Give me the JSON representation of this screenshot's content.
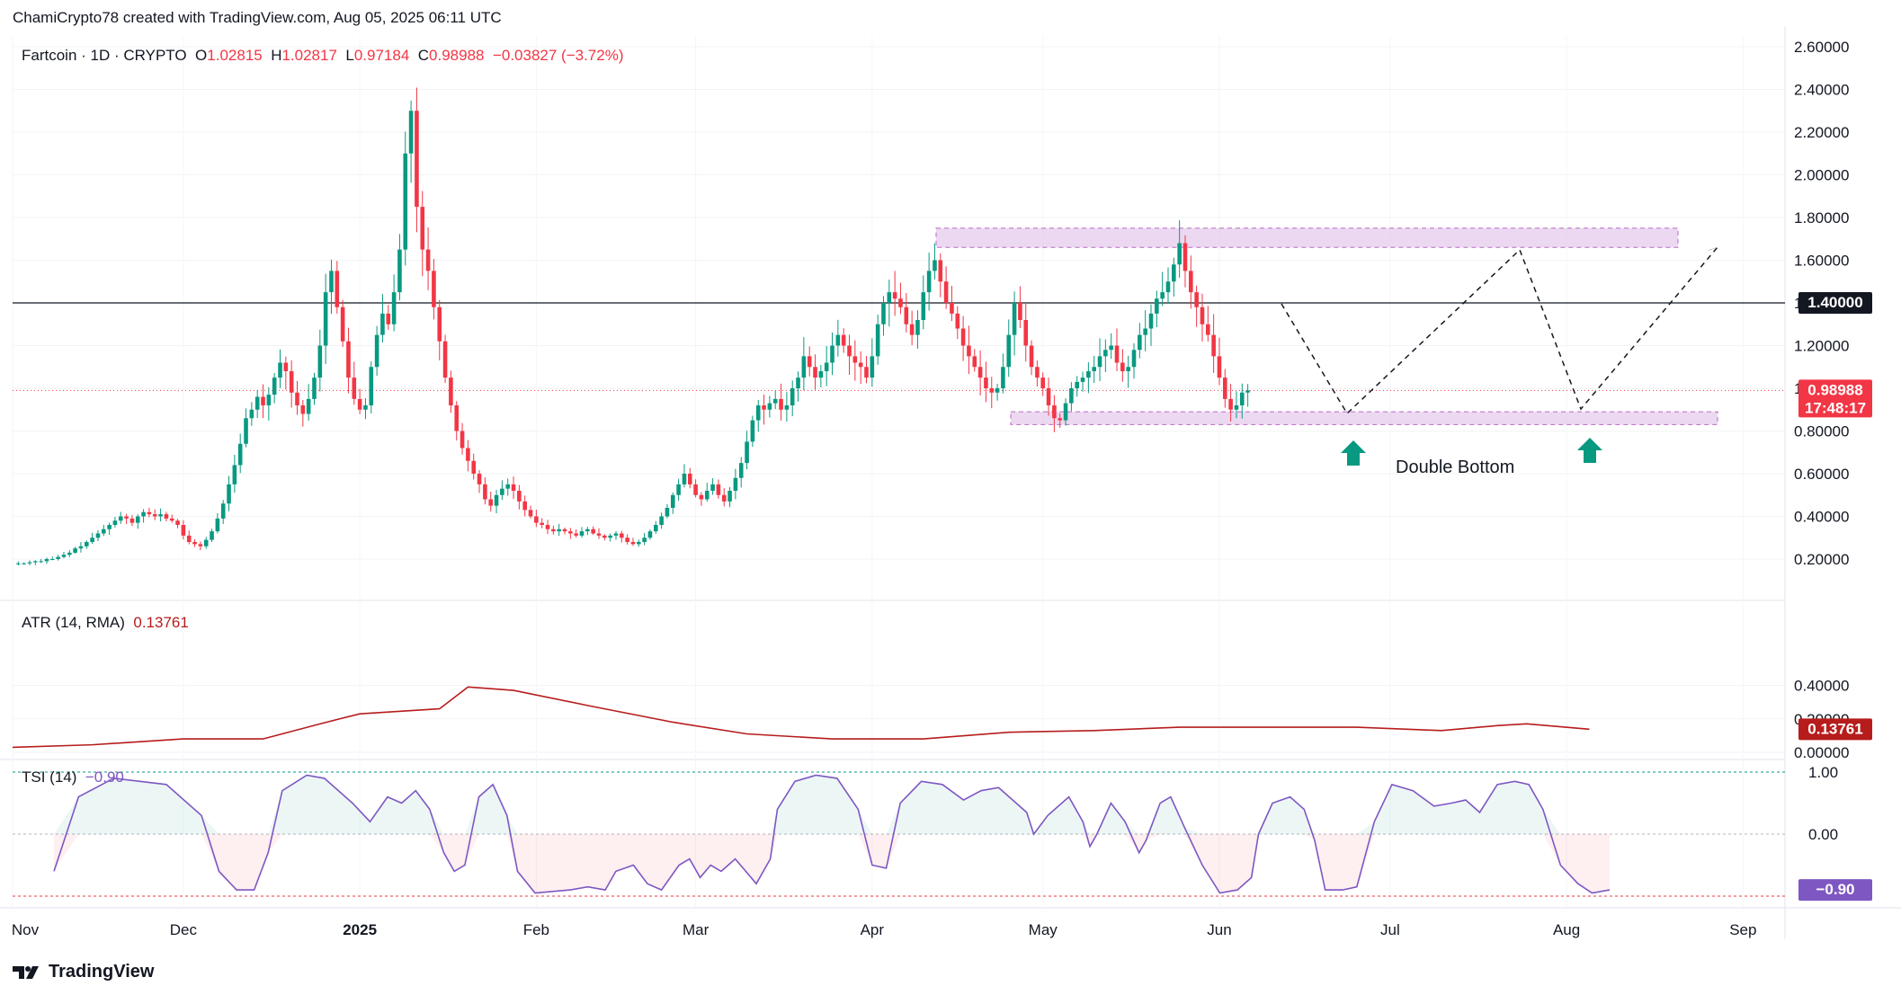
{
  "header": {
    "attribution": "ChamiCrypto78 created with TradingView.com, Aug 05, 2025 06:11 UTC"
  },
  "legend": {
    "symbol": "Fartcoin · 1D · CRYPTO",
    "open_label": "O",
    "open": "1.02815",
    "high_label": "H",
    "high": "1.02817",
    "low_label": "L",
    "low": "0.97184",
    "close_label": "C",
    "close": "0.98988",
    "change": "−0.03827 (−3.72%)"
  },
  "atr": {
    "label": "ATR (14, RMA)",
    "value": "0.13761",
    "axis_badge": "0.13761"
  },
  "tsi": {
    "label": "TSI (14)",
    "value": "−0.90",
    "axis_badge": "−0.90"
  },
  "price_badge": {
    "value": "0.98988",
    "countdown": "17:48:17"
  },
  "level_badge": "1.40000",
  "annotation": {
    "text": "Double Bottom"
  },
  "logo": {
    "text": "TradingView"
  },
  "colors": {
    "up": "#089981",
    "down": "#f23645",
    "zone_fill": "#e1bee7",
    "zone_border": "#ba68c8",
    "atr_line": "#b71c1c",
    "tsi_line": "#7e57c2"
  },
  "chart_data": [
    {
      "type": "candlestick",
      "title": "Fartcoin · 1D · CRYPTO",
      "x_ticks": [
        "Nov",
        "Dec",
        "2025",
        "Feb",
        "Mar",
        "Apr",
        "May",
        "Jun",
        "Jul",
        "Aug",
        "Sep"
      ],
      "y_ticks": [
        "2.60000",
        "2.40000",
        "2.20000",
        "2.00000",
        "1.80000",
        "1.60000",
        "1.40000",
        "1.20000",
        "1.00000",
        "0.80000",
        "0.60000",
        "0.40000",
        "0.20000"
      ],
      "ylim": [
        0.18,
        2.68
      ],
      "horizontal_line": 1.4,
      "resistance_zone": [
        1.66,
        1.75
      ],
      "support_zone": [
        0.83,
        0.89
      ],
      "last_close": 0.98988,
      "approx_daily_closes": [
        0.18,
        0.18,
        0.185,
        0.19,
        0.19,
        0.2,
        0.2,
        0.21,
        0.22,
        0.23,
        0.25,
        0.26,
        0.28,
        0.3,
        0.32,
        0.34,
        0.36,
        0.38,
        0.4,
        0.39,
        0.37,
        0.4,
        0.42,
        0.41,
        0.4,
        0.41,
        0.39,
        0.38,
        0.36,
        0.31,
        0.28,
        0.27,
        0.26,
        0.29,
        0.33,
        0.39,
        0.46,
        0.55,
        0.64,
        0.74,
        0.86,
        0.9,
        0.96,
        0.92,
        0.97,
        1.05,
        1.12,
        1.08,
        0.98,
        0.92,
        0.88,
        0.95,
        1.05,
        1.2,
        1.45,
        1.55,
        1.38,
        1.22,
        1.05,
        0.95,
        0.9,
        0.92,
        1.1,
        1.25,
        1.35,
        1.3,
        1.45,
        1.65,
        2.1,
        2.3,
        1.85,
        1.65,
        1.55,
        1.38,
        1.22,
        1.05,
        0.92,
        0.8,
        0.72,
        0.66,
        0.6,
        0.55,
        0.48,
        0.45,
        0.5,
        0.53,
        0.55,
        0.52,
        0.47,
        0.43,
        0.4,
        0.37,
        0.36,
        0.34,
        0.33,
        0.34,
        0.33,
        0.32,
        0.31,
        0.33,
        0.34,
        0.32,
        0.31,
        0.3,
        0.31,
        0.32,
        0.3,
        0.28,
        0.27,
        0.28,
        0.3,
        0.33,
        0.36,
        0.4,
        0.44,
        0.5,
        0.55,
        0.6,
        0.55,
        0.5,
        0.48,
        0.52,
        0.55,
        0.5,
        0.47,
        0.52,
        0.58,
        0.65,
        0.75,
        0.85,
        0.92,
        0.9,
        0.93,
        0.95,
        0.9,
        0.92,
        1.0,
        1.05,
        1.15,
        1.1,
        1.05,
        1.08,
        1.12,
        1.2,
        1.25,
        1.2,
        1.15,
        1.12,
        1.1,
        1.05,
        1.15,
        1.3,
        1.4,
        1.45,
        1.42,
        1.38,
        1.3,
        1.25,
        1.32,
        1.45,
        1.55,
        1.6,
        1.5,
        1.4,
        1.35,
        1.28,
        1.2,
        1.15,
        1.1,
        1.05,
        1.0,
        0.98,
        1.0,
        1.1,
        1.25,
        1.4,
        1.32,
        1.2,
        1.1,
        1.05,
        1.0,
        0.92,
        0.86,
        0.85,
        0.93,
        1.0,
        1.03,
        1.05,
        1.08,
        1.1,
        1.15,
        1.18,
        1.2,
        1.12,
        1.08,
        1.1,
        1.18,
        1.25,
        1.28,
        1.35,
        1.42,
        1.45,
        1.5,
        1.58,
        1.68,
        1.55,
        1.45,
        1.38,
        1.3,
        1.25,
        1.15,
        1.05,
        0.95,
        0.9,
        0.92,
        0.98,
        0.99
      ]
    },
    {
      "type": "line",
      "title": "ATR (14, RMA)",
      "y_ticks": [
        "0.40000",
        "0.20000",
        "0.00000"
      ],
      "ylim": [
        0,
        0.41
      ],
      "points_date_value": [
        [
          "Nov 1",
          0.03
        ],
        [
          "Nov 15",
          0.045
        ],
        [
          "Dec 1",
          0.08
        ],
        [
          "Dec 15",
          0.08
        ],
        [
          "Dec 25",
          0.17
        ],
        [
          "Jan 1",
          0.23
        ],
        [
          "Jan 15",
          0.26
        ],
        [
          "Jan 20",
          0.39
        ],
        [
          "Jan 28",
          0.37
        ],
        [
          "Feb 10",
          0.28
        ],
        [
          "Feb 25",
          0.18
        ],
        [
          "Mar 10",
          0.11
        ],
        [
          "Mar 25",
          0.08
        ],
        [
          "Apr 10",
          0.08
        ],
        [
          "Apr 25",
          0.12
        ],
        [
          "May 10",
          0.13
        ],
        [
          "May 25",
          0.15
        ],
        [
          "Jun 10",
          0.15
        ],
        [
          "Jun 25",
          0.15
        ],
        [
          "Jul 10",
          0.13
        ],
        [
          "Jul 20",
          0.16
        ],
        [
          "Jul 25",
          0.17
        ],
        [
          "Aug 5",
          0.138
        ]
      ]
    },
    {
      "type": "line",
      "title": "TSI (14)",
      "y_ticks": [
        "1.00",
        "0.00"
      ],
      "ylim": [
        -1.0,
        1.0
      ],
      "last_value": -0.9
    }
  ]
}
